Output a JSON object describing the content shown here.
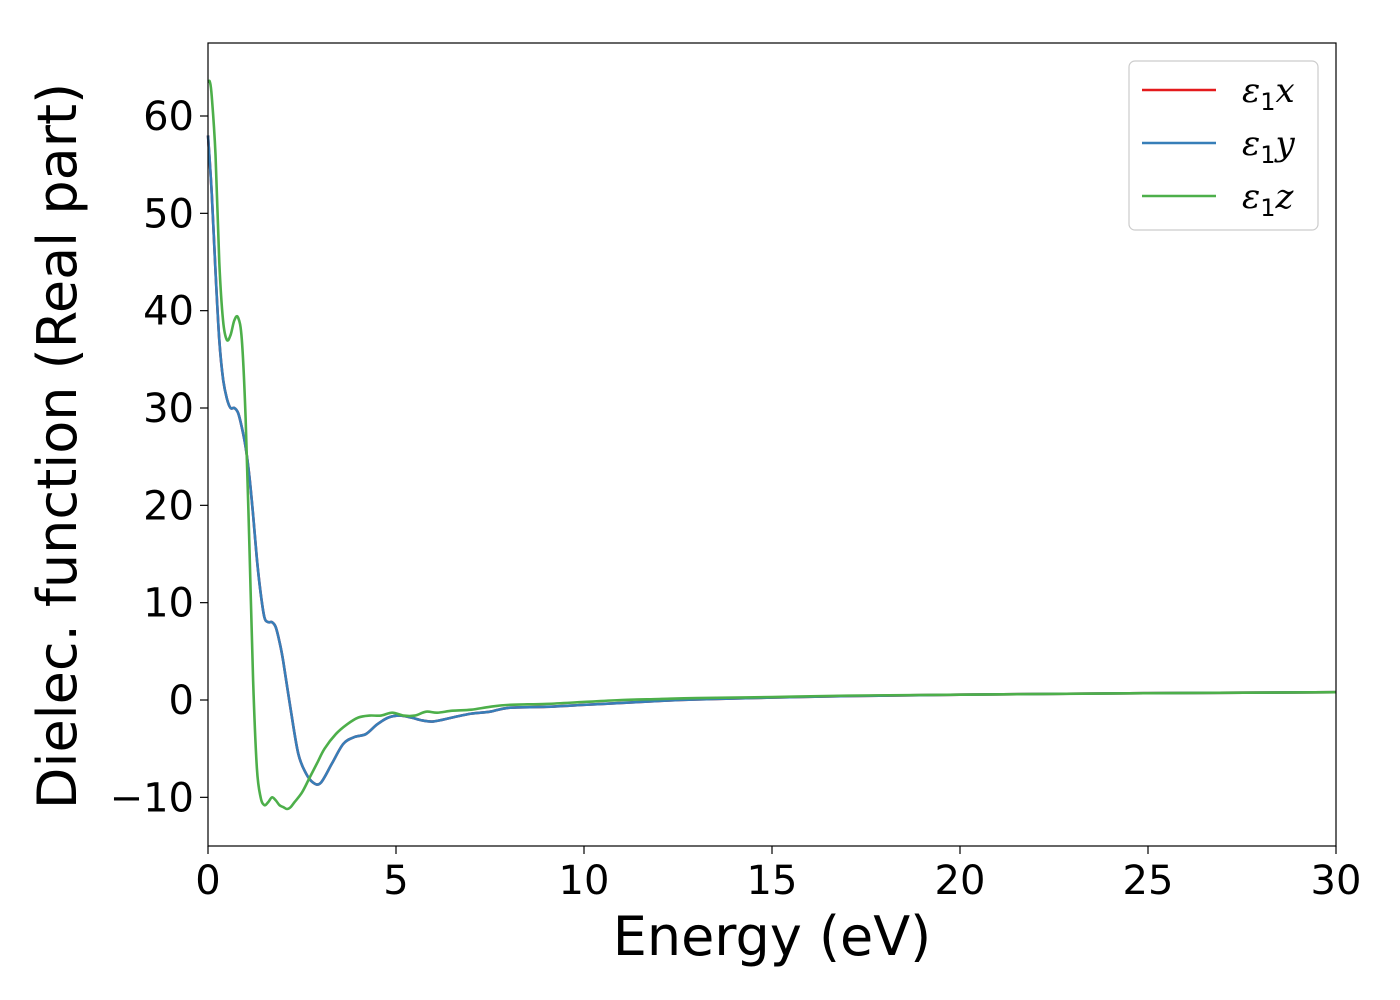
{
  "chart_data": {
    "type": "line",
    "xlabel": "Energy (eV)",
    "ylabel": "Dielec. function (Real part)",
    "xlim": [
      0,
      30
    ],
    "ylim": [
      -15,
      67.5
    ],
    "xticks": [
      0,
      5,
      10,
      15,
      20,
      25,
      30
    ],
    "xtick_labels": [
      "0",
      "5",
      "10",
      "15",
      "20",
      "25",
      "30"
    ],
    "yticks": [
      -10,
      0,
      10,
      20,
      30,
      40,
      50,
      60
    ],
    "ytick_labels": [
      "−10",
      "0",
      "10",
      "20",
      "30",
      "40",
      "50",
      "60"
    ],
    "grid": false,
    "legend_position": "top-right",
    "series": [
      {
        "name": "ε₁x",
        "label_base": "ε",
        "label_sub": "1",
        "label_var": "x",
        "color": "#e41a1c",
        "x": [
          0,
          0.1,
          0.2,
          0.3,
          0.4,
          0.5,
          0.6,
          0.7,
          0.8,
          0.9,
          1.0,
          1.1,
          1.2,
          1.3,
          1.4,
          1.5,
          1.6,
          1.7,
          1.8,
          1.9,
          2.0,
          2.2,
          2.4,
          2.6,
          2.8,
          3.0,
          3.3,
          3.6,
          3.9,
          4.2,
          4.5,
          4.8,
          5.1,
          5.4,
          5.7,
          6.0,
          6.5,
          7.0,
          7.5,
          8.0,
          9.0,
          10.0,
          11.0,
          12.0,
          13.0,
          15.0,
          17.0,
          20.0,
          25.0,
          30.0
        ],
        "y": [
          58,
          52,
          44,
          37,
          33,
          31,
          30,
          30,
          29.5,
          28,
          26,
          23,
          19,
          14.5,
          11,
          8.5,
          8,
          8,
          7.5,
          6,
          4,
          -1,
          -5.5,
          -7.5,
          -8.5,
          -8.5,
          -6.5,
          -4.5,
          -3.8,
          -3.5,
          -2.5,
          -1.8,
          -1.6,
          -1.8,
          -2.1,
          -2.2,
          -1.8,
          -1.4,
          -1.2,
          -0.8,
          -0.7,
          -0.5,
          -0.3,
          -0.1,
          0.05,
          0.25,
          0.4,
          0.55,
          0.7,
          0.8
        ]
      },
      {
        "name": "ε₁y",
        "label_base": "ε",
        "label_sub": "1",
        "label_var": "y",
        "color": "#377eb8",
        "x": [
          0,
          0.1,
          0.2,
          0.3,
          0.4,
          0.5,
          0.6,
          0.7,
          0.8,
          0.9,
          1.0,
          1.1,
          1.2,
          1.3,
          1.4,
          1.5,
          1.6,
          1.7,
          1.8,
          1.9,
          2.0,
          2.2,
          2.4,
          2.6,
          2.8,
          3.0,
          3.3,
          3.6,
          3.9,
          4.2,
          4.5,
          4.8,
          5.1,
          5.4,
          5.7,
          6.0,
          6.5,
          7.0,
          7.5,
          8.0,
          9.0,
          10.0,
          11.0,
          12.0,
          13.0,
          15.0,
          17.0,
          20.0,
          25.0,
          30.0
        ],
        "y": [
          58,
          52,
          44,
          37,
          33,
          31,
          30,
          30,
          29.5,
          28,
          26,
          23,
          19,
          14.5,
          11,
          8.5,
          8,
          8,
          7.5,
          6,
          4,
          -1,
          -5.5,
          -7.5,
          -8.5,
          -8.5,
          -6.5,
          -4.5,
          -3.8,
          -3.5,
          -2.5,
          -1.8,
          -1.6,
          -1.8,
          -2.1,
          -2.2,
          -1.8,
          -1.4,
          -1.2,
          -0.8,
          -0.7,
          -0.5,
          -0.3,
          -0.1,
          0.05,
          0.25,
          0.4,
          0.55,
          0.7,
          0.8
        ]
      },
      {
        "name": "ε₁z",
        "label_base": "ε",
        "label_sub": "1",
        "label_var": "z",
        "color": "#4daf4a",
        "x": [
          0,
          0.05,
          0.1,
          0.2,
          0.3,
          0.4,
          0.5,
          0.6,
          0.7,
          0.8,
          0.9,
          1.0,
          1.1,
          1.2,
          1.3,
          1.4,
          1.5,
          1.6,
          1.7,
          1.8,
          1.9,
          2.0,
          2.1,
          2.2,
          2.3,
          2.5,
          2.7,
          2.9,
          3.1,
          3.4,
          3.7,
          4.0,
          4.3,
          4.6,
          4.9,
          5.2,
          5.5,
          5.8,
          6.1,
          6.5,
          7.0,
          7.5,
          8.0,
          9.0,
          10.0,
          11.0,
          12.0,
          13.0,
          15.0,
          17.0,
          20.0,
          25.0,
          30.0
        ],
        "y": [
          63.5,
          63.5,
          62,
          56,
          45,
          39,
          37,
          37.5,
          39,
          39.3,
          37,
          29,
          16,
          2,
          -7,
          -10,
          -10.8,
          -10.5,
          -10,
          -10.3,
          -10.8,
          -11,
          -11.2,
          -11,
          -10.5,
          -9.5,
          -8,
          -6.5,
          -5,
          -3.5,
          -2.5,
          -1.8,
          -1.6,
          -1.6,
          -1.3,
          -1.6,
          -1.6,
          -1.2,
          -1.3,
          -1.1,
          -1.0,
          -0.7,
          -0.5,
          -0.4,
          -0.2,
          0.0,
          0.1,
          0.2,
          0.3,
          0.45,
          0.55,
          0.7,
          0.8
        ]
      }
    ]
  }
}
